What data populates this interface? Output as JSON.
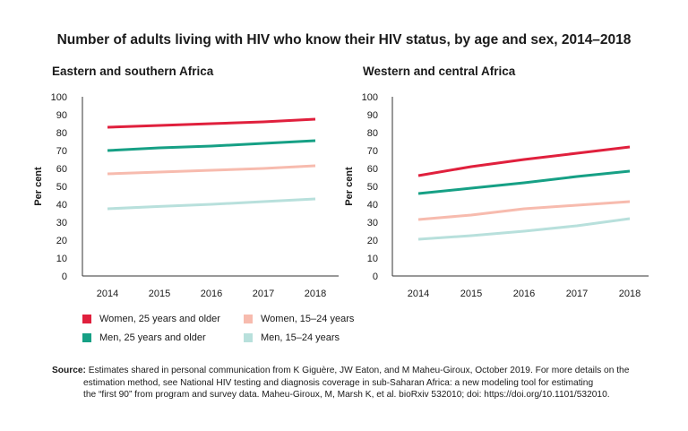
{
  "title": "Number of adults living with HIV who know their HIV status, by age and sex, 2014–2018",
  "source": {
    "label": "Source:",
    "line1": "Estimates shared in personal communication from K Giguère, JW Eaton, and M Maheu-Giroux, October 2019. For more details on the",
    "line2": "estimation method, see National HIV testing and diagnosis coverage in sub-Saharan Africa: a new modeling tool for estimating",
    "line3": "the “first 90” from program and survey data. Maheu-Giroux, M, Marsh K, et al. bioRxiv 532010; doi: https://doi.org/10.1101/532010."
  },
  "legend": [
    {
      "label": "Women, 25 years and older",
      "color": "#e0203d"
    },
    {
      "label": "Women, 15–24 years",
      "color": "#f7bbae"
    },
    {
      "label": "Men, 25 years and older",
      "color": "#16a085"
    },
    {
      "label": "Men, 15–24 years",
      "color": "#b8e0dc"
    }
  ],
  "chart_data": [
    {
      "type": "line",
      "title": "Eastern and southern Africa",
      "ylabel": "Per cent",
      "ylim": [
        0,
        100
      ],
      "yticks": [
        0,
        10,
        20,
        30,
        40,
        50,
        60,
        70,
        80,
        90,
        100
      ],
      "x": [
        "2014",
        "2015",
        "2016",
        "2017",
        "2018"
      ],
      "series": [
        {
          "name": "Women, 25 years and older",
          "color": "#e0203d",
          "values": [
            83,
            84,
            85,
            86,
            87.5
          ]
        },
        {
          "name": "Men, 25 years and older",
          "color": "#16a085",
          "values": [
            70,
            71.5,
            72.5,
            74,
            75.5
          ]
        },
        {
          "name": "Women, 15–24 years",
          "color": "#f7bbae",
          "values": [
            57,
            58,
            59,
            60,
            61.5
          ]
        },
        {
          "name": "Men, 15–24 years",
          "color": "#b8e0dc",
          "values": [
            37.5,
            38.8,
            40,
            41.5,
            43
          ]
        }
      ],
      "grid": false
    },
    {
      "type": "line",
      "title": "Western and central Africa",
      "ylabel": "Per cent",
      "ylim": [
        0,
        100
      ],
      "yticks": [
        0,
        10,
        20,
        30,
        40,
        50,
        60,
        70,
        80,
        90,
        100
      ],
      "x": [
        "2014",
        "2015",
        "2016",
        "2017",
        "2018"
      ],
      "series": [
        {
          "name": "Women, 25 years and older",
          "color": "#e0203d",
          "values": [
            56,
            61,
            65,
            68.5,
            72
          ]
        },
        {
          "name": "Men, 25 years and older",
          "color": "#16a085",
          "values": [
            46,
            49,
            52,
            55.5,
            58.5
          ]
        },
        {
          "name": "Women, 15–24 years",
          "color": "#f7bbae",
          "values": [
            31.5,
            34,
            37.5,
            39.5,
            41.5
          ]
        },
        {
          "name": "Men, 15–24 years",
          "color": "#b8e0dc",
          "values": [
            20.5,
            22.5,
            25,
            28,
            32
          ]
        }
      ],
      "grid": false
    }
  ]
}
